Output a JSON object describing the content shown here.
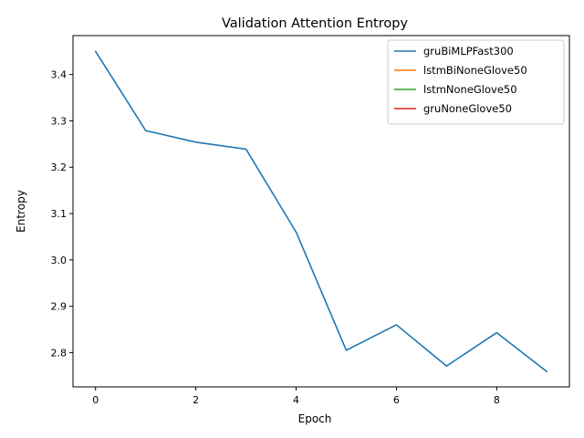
{
  "chart_data": {
    "type": "line",
    "title": "Validation Attention Entropy",
    "xlabel": "Epoch",
    "ylabel": "Entropy",
    "xlim": [
      -0.45,
      9.45
    ],
    "ylim": [
      2.726,
      3.484
    ],
    "xticks": [
      0,
      2,
      4,
      6,
      8
    ],
    "yticks": [
      2.8,
      2.9,
      3.0,
      3.1,
      3.2,
      3.3,
      3.4
    ],
    "xtick_labels": [
      "0",
      "2",
      "4",
      "6",
      "8"
    ],
    "ytick_labels": [
      "2.8",
      "2.9",
      "3.0",
      "3.1",
      "3.2",
      "3.3",
      "3.4"
    ],
    "grid": false,
    "legend_position": "upper-right",
    "series": [
      {
        "name": "gruBiMLPFast300",
        "color": "#1f77b4",
        "x": [
          0,
          1,
          2,
          3,
          4,
          5,
          6,
          7,
          8,
          9
        ],
        "y": [
          3.45,
          3.279,
          3.254,
          3.239,
          3.06,
          2.805,
          2.86,
          2.771,
          2.843,
          2.759
        ]
      },
      {
        "name": "lstmBiNoneGlove50",
        "color": "#ff7f0e",
        "x": [],
        "y": []
      },
      {
        "name": "lstmNoneGlove50",
        "color": "#2ca02c",
        "x": [],
        "y": []
      },
      {
        "name": "gruNoneGlove50",
        "color": "#d62728",
        "x": [],
        "y": []
      }
    ]
  }
}
